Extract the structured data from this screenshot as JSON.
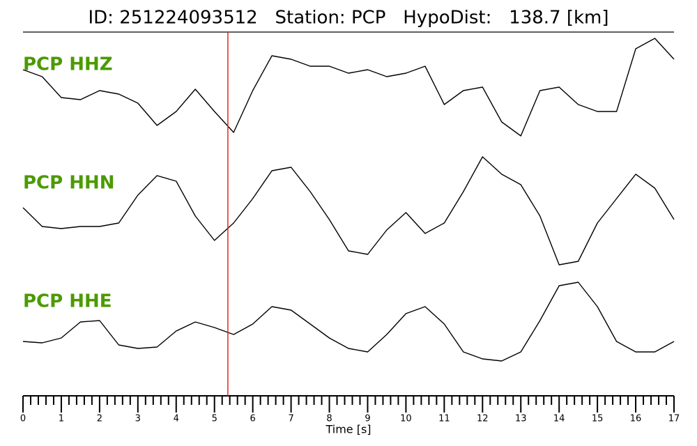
{
  "chart_data": {
    "type": "line",
    "title": "ID: 251224093512   Station: PCP   HypoDist:   138.7 [km]",
    "xlabel": "Time [s]",
    "xlim": [
      0,
      17
    ],
    "xticks": [
      0,
      1,
      2,
      3,
      4,
      5,
      6,
      7,
      8,
      9,
      10,
      11,
      12,
      13,
      14,
      15,
      16,
      17
    ],
    "xminorticks": [
      0.2,
      0.4,
      0.6,
      0.8,
      1.2,
      1.4,
      1.6,
      1.8,
      2.2,
      2.4,
      2.6,
      2.8,
      3.2,
      3.4,
      3.6,
      3.8,
      4.2,
      4.4,
      4.6,
      4.8,
      5.2,
      5.4,
      5.6,
      5.8,
      6.2,
      6.4,
      6.6,
      6.8,
      7.2,
      7.4,
      7.6,
      7.8,
      8.2,
      8.4,
      8.6,
      8.8,
      9.2,
      9.4,
      9.6,
      9.8,
      10.2,
      10.4,
      10.6,
      10.8,
      11.2,
      11.4,
      11.6,
      11.8,
      12.2,
      12.4,
      12.6,
      12.8,
      13.2,
      13.4,
      13.6,
      13.8,
      14.2,
      14.4,
      14.6,
      14.8,
      15.2,
      15.4,
      15.6,
      15.8,
      16.2,
      16.4,
      16.6,
      16.8
    ],
    "pick": {
      "x": 5.35,
      "color": "#e8221e"
    },
    "label_color": "#4c9a00",
    "x": [
      0,
      0.5,
      1,
      1.5,
      2,
      2.5,
      3,
      3.5,
      4,
      4.5,
      5,
      5.5,
      6,
      6.5,
      7,
      7.5,
      8,
      8.5,
      9,
      9.5,
      10,
      10.5,
      11,
      11.5,
      12,
      12.5,
      13,
      13.5,
      14,
      14.5,
      15,
      15.5,
      16,
      16.5,
      17
    ],
    "series": [
      {
        "name": "PCP HHZ",
        "color": "#000000",
        "ylim": [
          -85,
          85
        ],
        "values": [
          30,
          20,
          -10,
          -13,
          0,
          -5,
          -18,
          -50,
          -30,
          2,
          -30,
          -60,
          0,
          50,
          45,
          35,
          35,
          25,
          30,
          20,
          25,
          35,
          -20,
          0,
          5,
          -45,
          -65,
          0,
          5,
          -20,
          -30,
          -30,
          60,
          75,
          45
        ]
      },
      {
        "name": "PCP HHN",
        "color": "#000000",
        "ylim": [
          -85,
          85
        ],
        "values": [
          2,
          -25,
          -28,
          -25,
          -25,
          -20,
          20,
          48,
          40,
          -10,
          -45,
          -20,
          15,
          55,
          60,
          25,
          -15,
          -60,
          -65,
          -30,
          -5,
          -35,
          -20,
          25,
          75,
          50,
          35,
          -10,
          -80,
          -75,
          -20,
          15,
          50,
          30,
          -15
        ]
      },
      {
        "name": "PCP HHE",
        "color": "#000000",
        "ylim": [
          -85,
          85
        ],
        "values": [
          -20,
          -22,
          -15,
          8,
          10,
          -25,
          -30,
          -28,
          -5,
          8,
          0,
          -10,
          5,
          30,
          25,
          5,
          -15,
          -30,
          -35,
          -10,
          20,
          30,
          5,
          -35,
          -45,
          -48,
          -35,
          10,
          60,
          65,
          30,
          -20,
          -35,
          -35,
          -20
        ]
      }
    ]
  }
}
